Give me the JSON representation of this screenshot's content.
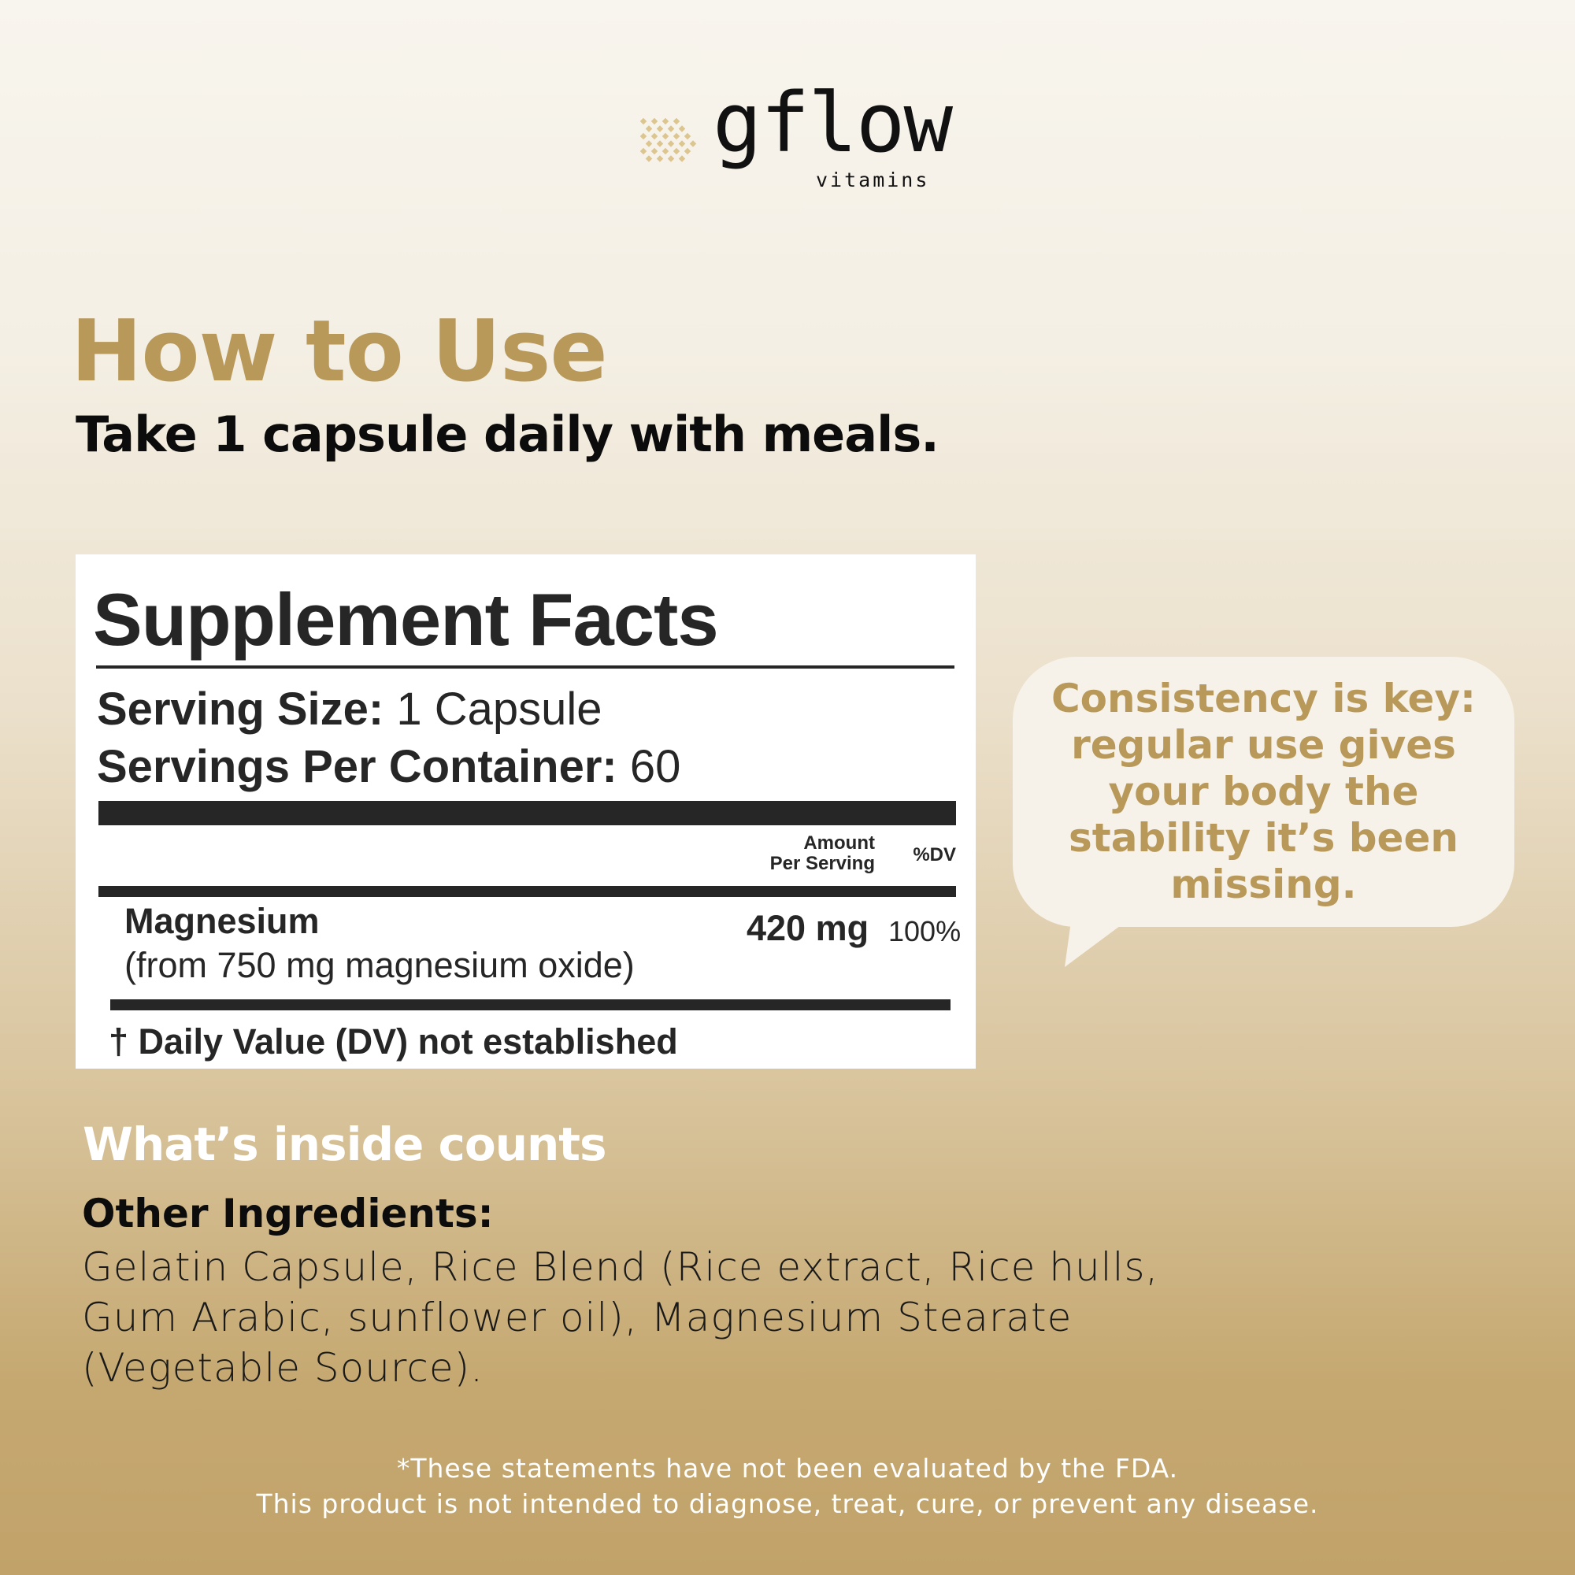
{
  "brand": {
    "name": "gflow",
    "tagline": "vitamins",
    "accent_color": "#b8995a"
  },
  "hero": {
    "title": "How to Use",
    "subtitle": "Take 1 capsule daily with meals."
  },
  "supplement_facts": {
    "title": "Supplement Facts",
    "serving_size_label": "Serving Size:",
    "serving_size_value": " 1 Capsule",
    "servings_label": "Servings Per Container:",
    "servings_value": " 60",
    "amount_header_1": "Amount",
    "amount_header_2": "Per Serving",
    "dv_header": "%DV",
    "nutrient": {
      "name": "Magnesium",
      "source": "(from 750 mg magnesium oxide)",
      "amount": "420 mg",
      "dv": "100%"
    },
    "footnote": "† Daily Value (DV) not established"
  },
  "callout": {
    "text": "Consistency is key: regular use gives your body the stability it’s been missing."
  },
  "ingredients": {
    "heading": "What’s inside counts",
    "label": "Other Ingredients:",
    "text": "Gelatin Capsule, Rice Blend (Rice extract, Rice hulls, Gum Arabic, sunflower oil), Magnesium Stearate (Vegetable Source)."
  },
  "disclaimer": {
    "line1": "*These statements have not been evaluated by the FDA.",
    "line2": "This product is not intended to diagnose, treat, cure, or prevent any disease."
  }
}
